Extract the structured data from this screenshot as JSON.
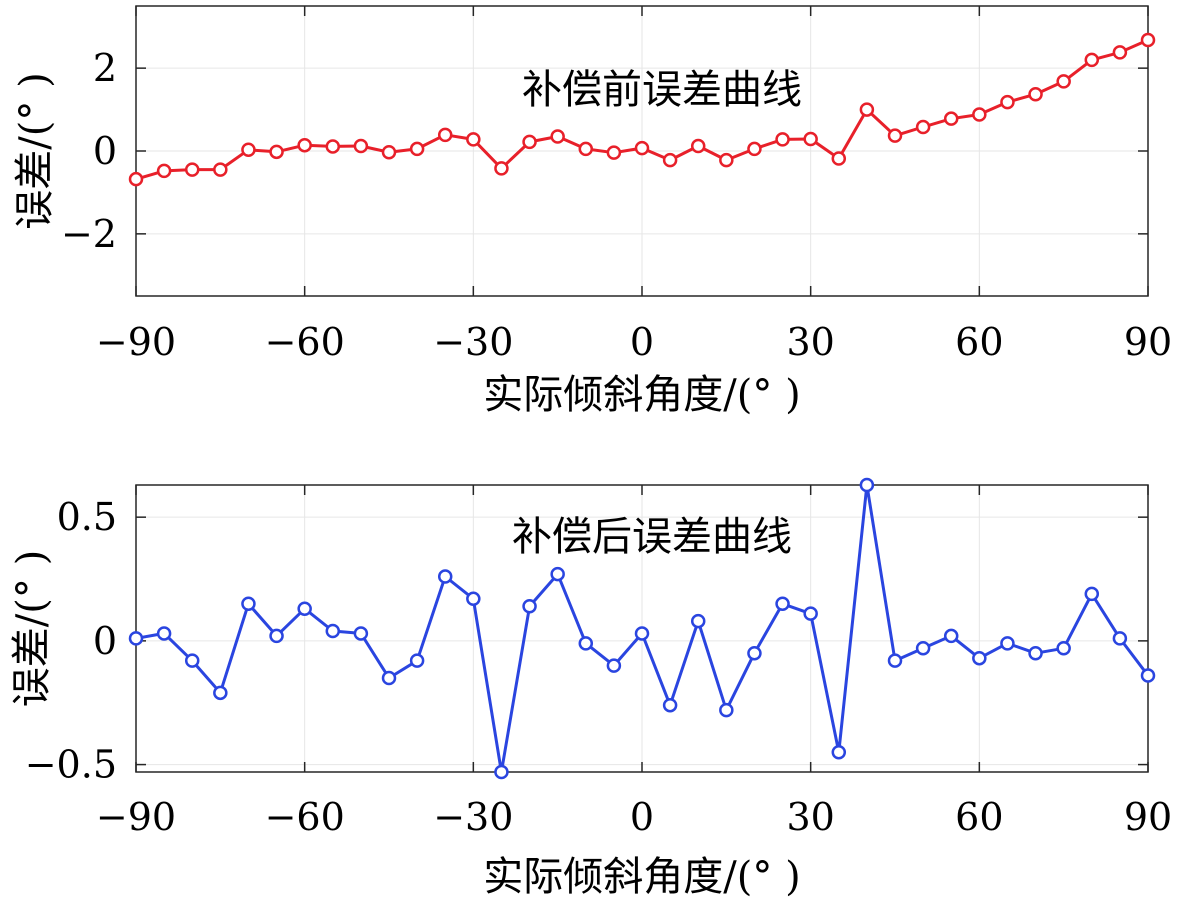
{
  "chart_data": [
    {
      "type": "line",
      "title": "补偿前误差曲线",
      "xlabel": "实际倾斜角度/(° )",
      "ylabel": "误差/(° )",
      "xlim": [
        -90,
        90
      ],
      "ylim": [
        -3.5,
        3.5
      ],
      "xticks": [
        -90,
        -60,
        -30,
        0,
        30,
        60,
        90
      ],
      "xtick_labels": [
        "−90",
        "−60",
        "−30",
        "0",
        "30",
        "60",
        "90"
      ],
      "yticks": [
        2,
        0,
        -2
      ],
      "ytick_labels": [
        "2",
        "0",
        "−2"
      ],
      "grid": true,
      "color": "#e8202a",
      "marker": "circle",
      "series": [
        {
          "x": [
            -90,
            -85,
            -80,
            -75,
            -70,
            -65,
            -60,
            -55,
            -50,
            -45,
            -40,
            -35,
            -30,
            -25,
            -20,
            -15,
            -10,
            -5,
            0,
            5,
            10,
            15,
            20,
            25,
            30,
            35,
            40,
            45,
            50,
            55,
            60,
            65,
            70,
            75,
            80,
            85,
            90
          ],
          "values": [
            -0.68,
            -0.48,
            -0.45,
            -0.45,
            0.03,
            -0.02,
            0.14,
            0.11,
            0.12,
            -0.03,
            0.05,
            0.39,
            0.28,
            -0.42,
            0.22,
            0.35,
            0.05,
            -0.04,
            0.07,
            -0.22,
            0.12,
            -0.22,
            0.05,
            0.28,
            0.29,
            -0.18,
            1.0,
            0.37,
            0.58,
            0.78,
            0.88,
            1.18,
            1.37,
            1.68,
            2.2,
            2.38,
            2.68
          ]
        }
      ]
    },
    {
      "type": "line",
      "title": "补偿后误差曲线",
      "xlabel": "实际倾斜角度/(° )",
      "ylabel": "误差/(° )",
      "xlim": [
        -90,
        90
      ],
      "ylim": [
        -0.53,
        0.63
      ],
      "xticks": [
        -90,
        -60,
        -30,
        0,
        30,
        60,
        90
      ],
      "xtick_labels": [
        "−90",
        "−60",
        "−30",
        "0",
        "30",
        "60",
        "90"
      ],
      "yticks": [
        0.5,
        0,
        -0.5
      ],
      "ytick_labels": [
        "0.5",
        "0",
        "−0.5"
      ],
      "grid": true,
      "color": "#2a45e0",
      "marker": "circle",
      "series": [
        {
          "x": [
            -90,
            -85,
            -80,
            -75,
            -70,
            -65,
            -60,
            -55,
            -50,
            -45,
            -40,
            -35,
            -30,
            -25,
            -20,
            -15,
            -10,
            -5,
            0,
            5,
            10,
            15,
            20,
            25,
            30,
            35,
            40,
            45,
            50,
            55,
            60,
            65,
            70,
            75,
            80,
            85,
            90
          ],
          "values": [
            0.01,
            0.03,
            -0.08,
            -0.21,
            0.15,
            0.02,
            0.13,
            0.04,
            0.03,
            -0.15,
            -0.08,
            0.26,
            0.17,
            -0.53,
            0.14,
            0.27,
            -0.01,
            -0.1,
            0.03,
            -0.26,
            0.08,
            -0.28,
            -0.05,
            0.15,
            0.11,
            -0.45,
            0.63,
            -0.08,
            -0.03,
            0.02,
            -0.07,
            -0.01,
            -0.05,
            -0.03,
            0.19,
            0.01,
            -0.14
          ]
        }
      ]
    }
  ]
}
